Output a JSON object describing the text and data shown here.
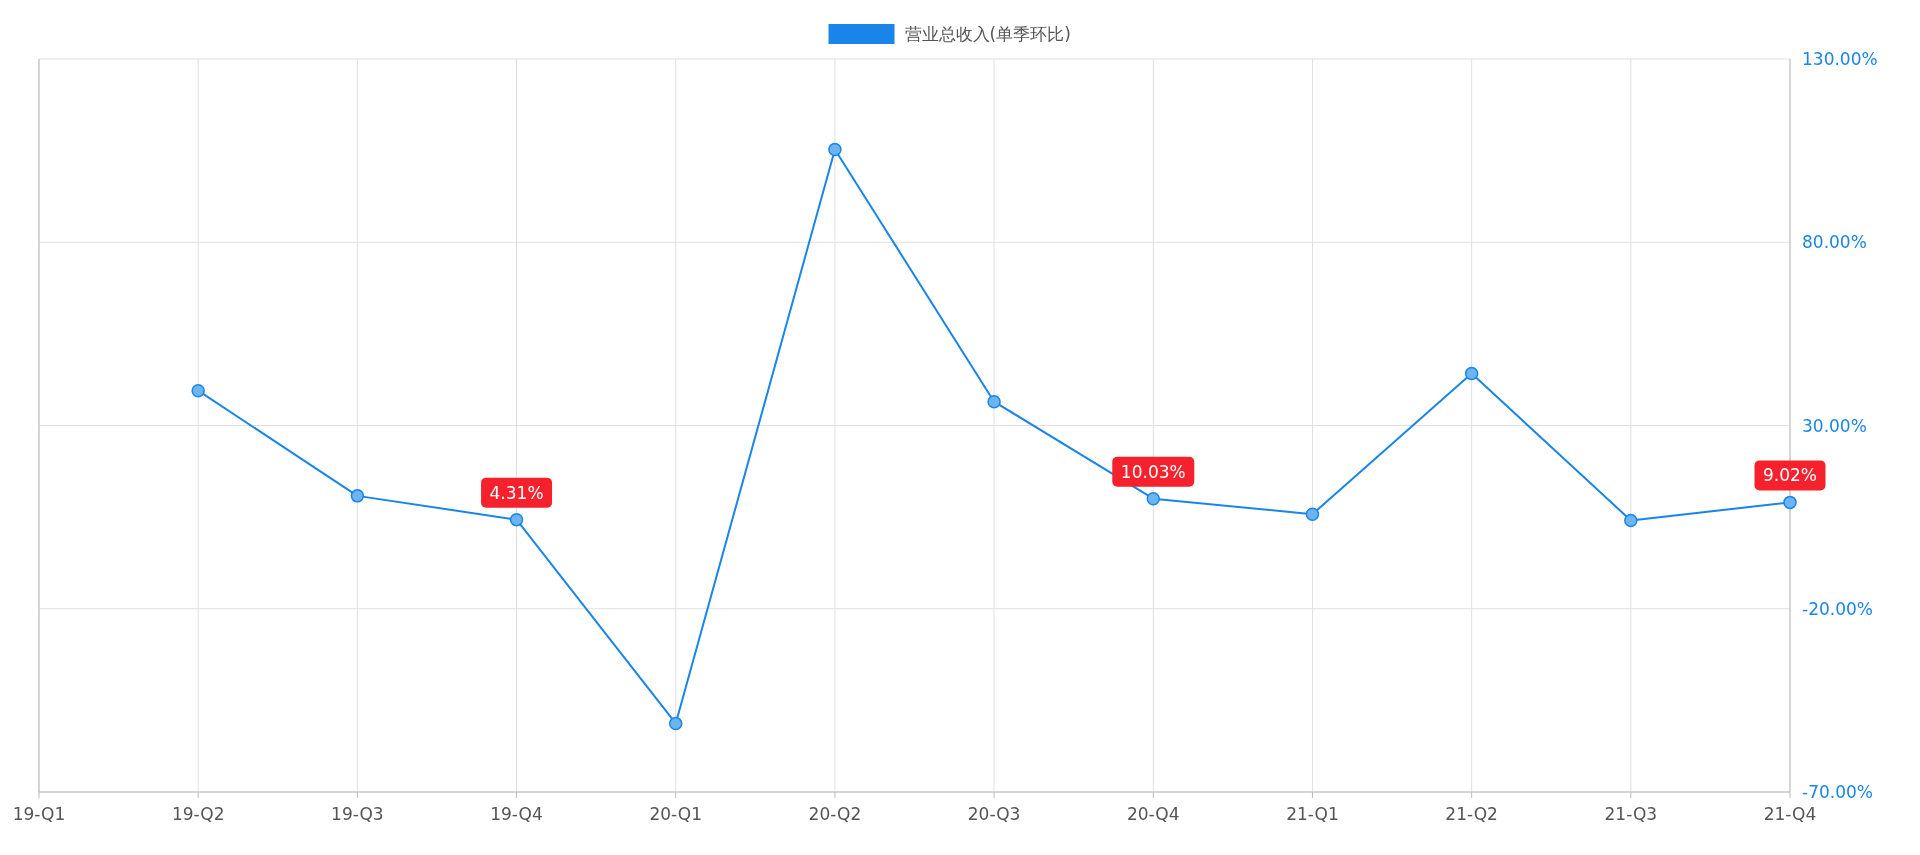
{
  "chart_data": {
    "type": "line",
    "categories": [
      "19-Q1",
      "19-Q2",
      "19-Q3",
      "19-Q4",
      "20-Q1",
      "20-Q2",
      "20-Q3",
      "20-Q4",
      "21-Q1",
      "21-Q2",
      "21-Q3",
      "21-Q4"
    ],
    "series": [
      {
        "name": "营业总收入(单季环比)",
        "color": "#1a85e8",
        "values": [
          null,
          39.5,
          10.8,
          4.31,
          -51.3,
          105.3,
          36.5,
          10.03,
          5.8,
          44.2,
          4.1,
          9.02
        ],
        "value_labels": [
          null,
          null,
          null,
          "4.31%",
          null,
          null,
          null,
          "10.03%",
          null,
          null,
          null,
          "9.02%"
        ]
      }
    ],
    "ylim": [
      -70,
      130
    ],
    "yticks": [
      {
        "value": -70,
        "label": "-70.00%"
      },
      {
        "value": -20,
        "label": "-20.00%"
      },
      {
        "value": 30,
        "label": "30.00%"
      },
      {
        "value": 80,
        "label": "80.00%"
      },
      {
        "value": 130,
        "label": "130.00%"
      }
    ],
    "grid": true,
    "legend": "top",
    "marker": "circle"
  }
}
